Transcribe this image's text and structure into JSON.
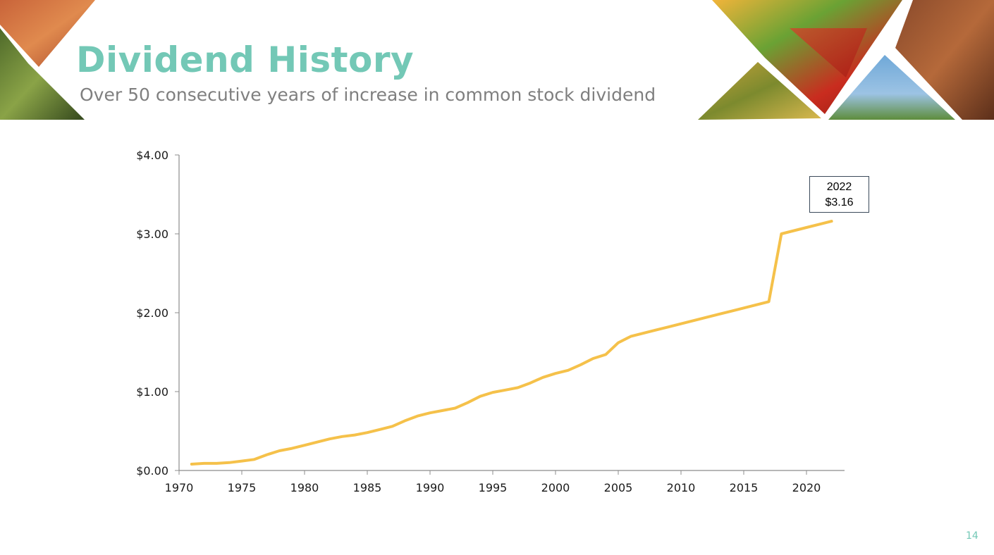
{
  "slide": {
    "title": "Dividend History",
    "subtitle": "Over 50 consecutive years of increase in common stock dividend",
    "page_number": "14",
    "accent_color": "#73c8b6",
    "line_color": "#f5c14a"
  },
  "callout": {
    "year": "2022",
    "value": "$3.16"
  },
  "chart_data": {
    "type": "line",
    "title": "",
    "xlabel": "",
    "ylabel": "",
    "xlim": [
      1970,
      2023
    ],
    "ylim": [
      0,
      4
    ],
    "x_ticks": [
      1970,
      1975,
      1980,
      1985,
      1990,
      1995,
      2000,
      2005,
      2010,
      2015,
      2020
    ],
    "y_ticks": [
      0,
      1,
      2,
      3,
      4
    ],
    "y_tick_labels": [
      "$0.00",
      "$1.00",
      "$2.00",
      "$3.00",
      "$4.00"
    ],
    "grid": false,
    "legend": "none",
    "series": [
      {
        "color": "#f5c14a",
        "x": [
          1971,
          1972,
          1973,
          1974,
          1975,
          1976,
          1977,
          1978,
          1979,
          1980,
          1981,
          1982,
          1983,
          1984,
          1985,
          1986,
          1987,
          1988,
          1989,
          1990,
          1991,
          1992,
          1993,
          1994,
          1995,
          1996,
          1997,
          1998,
          1999,
          2000,
          2001,
          2002,
          2003,
          2004,
          2005,
          2006,
          2007,
          2008,
          2009,
          2010,
          2011,
          2012,
          2013,
          2014,
          2015,
          2016,
          2017,
          2018,
          2019,
          2020,
          2021,
          2022
        ],
        "values": [
          0.08,
          0.09,
          0.09,
          0.1,
          0.12,
          0.14,
          0.2,
          0.25,
          0.28,
          0.32,
          0.36,
          0.4,
          0.43,
          0.45,
          0.48,
          0.52,
          0.56,
          0.63,
          0.69,
          0.73,
          0.76,
          0.79,
          0.86,
          0.94,
          0.99,
          1.02,
          1.05,
          1.11,
          1.18,
          1.23,
          1.27,
          1.34,
          1.42,
          1.47,
          1.62,
          1.7,
          1.74,
          1.78,
          1.82,
          1.86,
          1.9,
          1.94,
          1.98,
          2.02,
          2.06,
          2.1,
          2.14,
          3.0,
          3.04,
          3.08,
          3.12,
          3.16
        ]
      }
    ]
  }
}
